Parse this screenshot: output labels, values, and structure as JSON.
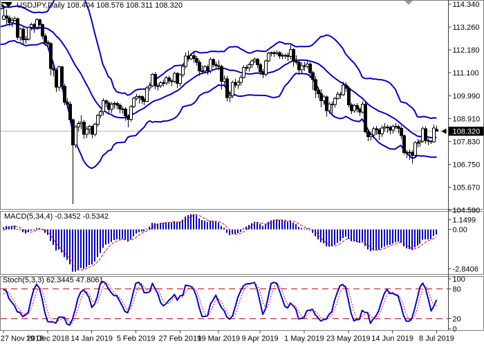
{
  "header": {
    "title": "USDJPY,Daily 108.404 108.576 108.311 108.320"
  },
  "macd_panel": {
    "label": "MACD(5,34,4) -0.3452 -0.5342",
    "name": "MACD",
    "params": "5,34,4",
    "value_main": "-0.3452",
    "value_signal": "-0.5342",
    "axis_labels": [
      "1.1499",
      "0.00",
      "-2.8406"
    ]
  },
  "stoch_panel": {
    "label": "Stoch(5,3,3) 62.3445 47.8061",
    "name": "Stochastic",
    "params": "5,3,3",
    "value_main": "62.3445",
    "value_signal": "47.8061",
    "axis_labels": [
      "100",
      "80",
      "20",
      "0"
    ],
    "levels": [
      80,
      20
    ]
  },
  "price_axis": {
    "tick_labels": [
      "114.340",
      "113.260",
      "112.180",
      "111.100",
      "109.990",
      "108.910",
      "107.830",
      "106.750",
      "105.670",
      "104.590"
    ],
    "current_price": "108.320"
  },
  "time_axis": {
    "ticks": [
      {
        "label": "27 Nov 2018",
        "index": 0
      },
      {
        "label": "19 Dec 2018",
        "index": 16
      },
      {
        "label": "14 Jan 2019",
        "index": 32
      },
      {
        "label": "5 Feb 2019",
        "index": 48
      },
      {
        "label": "27 Feb 2019",
        "index": 64
      },
      {
        "label": "19 Mar 2019",
        "index": 78
      },
      {
        "label": "9 Apr 2019",
        "index": 93
      },
      {
        "label": "1 May 2019",
        "index": 109
      },
      {
        "label": "23 May 2019",
        "index": 125
      },
      {
        "label": "14 Jun 2019",
        "index": 141
      },
      {
        "label": "8 Jul 2019",
        "index": 157
      }
    ]
  },
  "colors": {
    "background": "#ffffff",
    "text": "#000000",
    "panel_border": "#7d7d7d",
    "axis_line": "#3c3c3c",
    "bull_body": "#ffffff",
    "bear_body": "#000000",
    "candle_outline": "#000000",
    "bollinger": "#0000c8",
    "macd_hist": "#0000c8",
    "macd_signal": "#e00000",
    "stoch_main": "#0000c8",
    "stoch_signal": "#e00000",
    "stoch_level": "#c00000",
    "price_line": "#b4b4b4",
    "price_tag_bg": "#000000",
    "price_tag_fg": "#ffffff",
    "shift_marker": "#9a9a9a"
  },
  "chart_data": {
    "type": "candlestick",
    "symbol": "USDJPY",
    "timeframe": "Daily",
    "title": "USDJPY,Daily",
    "current_bar": {
      "open": 108.404,
      "high": 108.576,
      "low": 108.311,
      "close": 108.32
    },
    "indicators": [
      {
        "name": "Bollinger Bands",
        "period": 20,
        "deviation": 2
      },
      {
        "name": "MACD",
        "fast_ema": 5,
        "slow_ema": 34,
        "signal_sma": 4
      },
      {
        "name": "Stochastic",
        "k_period": 5,
        "d_period": 3,
        "slowing": 3
      }
    ],
    "price_axis_range": [
      104.59,
      114.34
    ],
    "macd_axis_range": [
      -2.8406,
      1.1499
    ],
    "stoch_axis_range": [
      0,
      100
    ],
    "visible_from": 20,
    "candles_note": "[open,high,low,close]; first 20 bars are pre-window warm-up for indicators",
    "candles": [
      [
        113.0,
        113.3,
        112.9,
        113.14
      ],
      [
        113.14,
        113.4,
        112.8,
        112.94
      ],
      [
        112.94,
        113.1,
        112.55,
        112.72
      ],
      [
        112.72,
        113.25,
        112.6,
        113.2
      ],
      [
        113.2,
        113.35,
        113.05,
        113.21
      ],
      [
        113.21,
        113.5,
        113.06,
        113.4
      ],
      [
        113.4,
        113.6,
        113.2,
        113.53
      ],
      [
        113.53,
        114.08,
        113.42,
        113.99
      ],
      [
        113.99,
        114.06,
        113.65,
        113.84
      ],
      [
        113.84,
        114.0,
        113.7,
        113.85
      ],
      [
        113.85,
        113.95,
        113.6,
        113.82
      ],
      [
        113.82,
        113.9,
        113.45,
        113.65
      ],
      [
        113.65,
        113.75,
        113.3,
        113.54
      ],
      [
        113.54,
        113.62,
        112.65,
        112.83
      ],
      [
        112.83,
        112.9,
        112.3,
        112.54
      ],
      [
        112.54,
        112.85,
        112.4,
        112.76
      ],
      [
        112.76,
        113.2,
        112.6,
        113.11
      ],
      [
        113.11,
        113.25,
        112.8,
        112.95
      ],
      [
        112.95,
        113.15,
        112.85,
        112.96
      ],
      [
        112.96,
        113.65,
        112.9,
        113.57
      ],
      [
        113.62,
        114.21,
        113.59,
        113.78
      ],
      [
        113.78,
        114.1,
        113.4,
        113.68
      ],
      [
        113.68,
        113.8,
        113.3,
        113.47
      ],
      [
        113.47,
        113.71,
        113.26,
        113.57
      ],
      [
        113.57,
        113.75,
        113.5,
        113.66
      ],
      [
        113.66,
        113.7,
        112.65,
        112.77
      ],
      [
        112.77,
        113.23,
        112.6,
        113.17
      ],
      [
        113.17,
        113.25,
        112.44,
        112.66
      ],
      [
        112.66,
        112.84,
        112.48,
        112.69
      ],
      [
        112.69,
        113.3,
        112.62,
        113.24
      ],
      [
        113.24,
        113.45,
        113.1,
        113.38
      ],
      [
        113.38,
        113.45,
        112.99,
        113.25
      ],
      [
        113.25,
        113.68,
        113.14,
        113.6
      ],
      [
        113.6,
        113.66,
        113.2,
        113.38
      ],
      [
        113.38,
        113.43,
        112.68,
        112.83
      ],
      [
        112.83,
        112.95,
        112.36,
        112.52
      ],
      [
        112.52,
        112.63,
        112.25,
        112.48
      ],
      [
        112.48,
        112.56,
        110.96,
        111.29
      ],
      [
        111.29,
        111.48,
        110.91,
        111.22
      ],
      [
        111.22,
        111.32,
        110.17,
        110.4
      ],
      [
        110.4,
        111.42,
        110.22,
        111.37
      ],
      [
        111.37,
        111.41,
        110.31,
        110.46
      ],
      [
        110.46,
        110.57,
        109.55,
        109.69
      ],
      [
        109.69,
        109.88,
        109.43,
        109.61
      ],
      [
        109.61,
        109.73,
        108.71,
        108.87
      ],
      [
        108.87,
        108.91,
        104.87,
        107.67
      ],
      [
        107.67,
        108.6,
        107.52,
        108.52
      ],
      [
        108.52,
        108.8,
        108.32,
        108.68
      ],
      [
        108.68,
        109.08,
        108.4,
        108.75
      ],
      [
        108.75,
        108.85,
        107.97,
        108.17
      ],
      [
        108.17,
        108.55,
        107.99,
        108.42
      ],
      [
        108.42,
        108.62,
        108.18,
        108.55
      ],
      [
        108.55,
        108.6,
        107.99,
        108.17
      ],
      [
        108.17,
        108.72,
        108.08,
        108.65
      ],
      [
        108.65,
        109.12,
        108.52,
        109.08
      ],
      [
        109.08,
        109.33,
        108.93,
        109.25
      ],
      [
        109.25,
        109.89,
        109.07,
        109.77
      ],
      [
        109.77,
        109.82,
        109.45,
        109.66
      ],
      [
        109.66,
        109.75,
        109.13,
        109.36
      ],
      [
        109.36,
        109.7,
        109.19,
        109.6
      ],
      [
        109.6,
        109.74,
        109.39,
        109.63
      ],
      [
        109.63,
        109.72,
        109.36,
        109.55
      ],
      [
        109.55,
        109.64,
        109.18,
        109.38
      ],
      [
        109.38,
        109.51,
        109.16,
        109.38
      ],
      [
        109.38,
        109.46,
        108.81,
        109.05
      ],
      [
        109.05,
        109.13,
        108.5,
        108.89
      ],
      [
        108.89,
        109.56,
        108.76,
        109.49
      ],
      [
        109.49,
        109.95,
        109.42,
        109.89
      ],
      [
        109.89,
        110.1,
        109.76,
        109.96
      ],
      [
        109.96,
        110.04,
        109.64,
        109.97
      ],
      [
        109.97,
        110.02,
        109.6,
        109.82
      ],
      [
        109.82,
        109.91,
        109.56,
        109.73
      ],
      [
        109.73,
        110.45,
        109.7,
        110.38
      ],
      [
        110.38,
        110.64,
        110.23,
        110.48
      ],
      [
        110.48,
        111.08,
        110.41,
        111.02
      ],
      [
        111.02,
        111.13,
        110.31,
        110.47
      ],
      [
        110.47,
        110.58,
        110.26,
        110.48
      ],
      [
        110.48,
        110.68,
        110.37,
        110.62
      ],
      [
        110.62,
        110.77,
        110.44,
        110.61
      ],
      [
        110.61,
        110.93,
        110.51,
        110.85
      ],
      [
        110.85,
        110.95,
        110.55,
        110.7
      ],
      [
        110.7,
        110.78,
        110.45,
        110.69
      ],
      [
        110.69,
        111.15,
        110.6,
        111.06
      ],
      [
        111.06,
        111.11,
        110.35,
        110.58
      ],
      [
        110.58,
        111.07,
        110.44,
        111.0
      ],
      [
        111.0,
        111.49,
        110.88,
        111.39
      ],
      [
        111.39,
        112.07,
        111.29,
        111.89
      ],
      [
        111.89,
        112.14,
        111.62,
        111.75
      ],
      [
        111.75,
        111.99,
        111.68,
        111.9
      ],
      [
        111.9,
        112.13,
        111.57,
        111.77
      ],
      [
        111.77,
        111.88,
        111.42,
        111.59
      ],
      [
        111.59,
        111.7,
        110.95,
        111.17
      ],
      [
        111.17,
        111.44,
        111.05,
        111.18
      ],
      [
        111.18,
        111.45,
        111.06,
        111.37
      ],
      [
        111.37,
        111.48,
        110.99,
        111.17
      ],
      [
        111.17,
        111.81,
        111.07,
        111.72
      ],
      [
        111.72,
        111.79,
        111.36,
        111.48
      ],
      [
        111.48,
        111.61,
        111.27,
        111.42
      ],
      [
        111.42,
        111.69,
        111.21,
        111.39
      ],
      [
        111.39,
        111.48,
        110.3,
        110.69
      ],
      [
        110.69,
        110.97,
        110.52,
        110.8
      ],
      [
        110.8,
        110.95,
        109.74,
        109.92
      ],
      [
        109.92,
        110.23,
        109.7,
        110.0
      ],
      [
        110.0,
        110.72,
        109.88,
        110.64
      ],
      [
        110.64,
        110.8,
        110.37,
        110.51
      ],
      [
        110.51,
        110.74,
        110.33,
        110.63
      ],
      [
        110.63,
        110.99,
        110.49,
        110.86
      ],
      [
        110.86,
        111.46,
        110.81,
        111.35
      ],
      [
        111.35,
        111.48,
        111.17,
        111.32
      ],
      [
        111.32,
        111.58,
        111.14,
        111.48
      ],
      [
        111.48,
        111.72,
        111.32,
        111.66
      ],
      [
        111.66,
        111.82,
        111.55,
        111.73
      ],
      [
        111.73,
        111.78,
        111.31,
        111.47
      ],
      [
        111.47,
        111.56,
        110.98,
        111.15
      ],
      [
        111.15,
        111.27,
        110.84,
        111.01
      ],
      [
        111.01,
        111.72,
        110.92,
        111.65
      ],
      [
        111.65,
        112.1,
        111.58,
        112.02
      ],
      [
        112.02,
        112.09,
        111.86,
        112.04
      ],
      [
        112.04,
        112.13,
        111.83,
        112.0
      ],
      [
        112.0,
        112.17,
        111.91,
        112.04
      ],
      [
        112.04,
        112.11,
        111.76,
        111.88
      ],
      [
        111.88,
        112.02,
        111.74,
        111.92
      ],
      [
        111.92,
        112.0,
        111.76,
        111.92
      ],
      [
        111.92,
        112.05,
        111.66,
        111.87
      ],
      [
        111.87,
        112.4,
        111.73,
        112.19
      ],
      [
        112.19,
        112.26,
        111.37,
        111.63
      ],
      [
        111.63,
        111.92,
        111.47,
        111.58
      ],
      [
        111.58,
        111.7,
        111.04,
        111.22
      ],
      [
        111.22,
        111.59,
        111.05,
        111.42
      ],
      [
        111.42,
        111.6,
        111.18,
        111.39
      ],
      [
        111.39,
        111.69,
        111.29,
        111.5
      ],
      [
        111.5,
        111.58,
        110.84,
        111.1
      ],
      [
        111.1,
        111.19,
        110.28,
        110.76
      ],
      [
        110.76,
        110.93,
        109.9,
        110.26
      ],
      [
        110.26,
        110.4,
        109.88,
        110.1
      ],
      [
        110.1,
        110.31,
        109.46,
        109.76
      ],
      [
        109.76,
        110.05,
        109.57,
        109.95
      ],
      [
        109.95,
        110.01,
        109.01,
        109.3
      ],
      [
        109.3,
        109.7,
        109.14,
        109.6
      ],
      [
        109.6,
        109.74,
        109.15,
        109.59
      ],
      [
        109.59,
        109.94,
        109.44,
        109.87
      ],
      [
        109.87,
        110.19,
        109.81,
        110.08
      ],
      [
        110.08,
        110.2,
        109.85,
        110.05
      ],
      [
        110.05,
        110.67,
        109.99,
        110.51
      ],
      [
        110.51,
        110.63,
        110.19,
        110.35
      ],
      [
        110.35,
        110.45,
        109.46,
        109.57
      ],
      [
        109.57,
        109.67,
        109.12,
        109.3
      ],
      [
        109.3,
        109.62,
        109.19,
        109.53
      ],
      [
        109.53,
        109.66,
        109.21,
        109.37
      ],
      [
        109.37,
        109.45,
        109.05,
        109.22
      ],
      [
        109.22,
        109.74,
        109.15,
        109.61
      ],
      [
        109.61,
        109.7,
        108.22,
        108.29
      ],
      [
        108.29,
        108.4,
        107.85,
        108.07
      ],
      [
        108.07,
        108.28,
        107.88,
        108.15
      ],
      [
        108.15,
        108.53,
        107.99,
        108.44
      ],
      [
        108.44,
        108.57,
        108.14,
        108.39
      ],
      [
        108.39,
        108.47,
        107.89,
        108.19
      ],
      [
        108.19,
        108.58,
        108.05,
        108.47
      ],
      [
        108.47,
        108.7,
        108.29,
        108.52
      ],
      [
        108.52,
        108.62,
        108.24,
        108.5
      ],
      [
        108.5,
        108.59,
        108.16,
        108.37
      ],
      [
        108.37,
        108.64,
        108.21,
        108.56
      ],
      [
        108.56,
        108.72,
        108.42,
        108.54
      ],
      [
        108.54,
        108.63,
        108.23,
        108.45
      ],
      [
        108.45,
        108.56,
        107.93,
        108.11
      ],
      [
        108.11,
        108.16,
        107.21,
        107.3
      ],
      [
        107.3,
        107.44,
        107.04,
        107.32
      ],
      [
        107.32,
        107.45,
        106.96,
        107.32
      ],
      [
        107.32,
        107.42,
        106.78,
        107.18
      ],
      [
        107.18,
        107.85,
        107.11,
        107.79
      ],
      [
        107.79,
        107.94,
        107.56,
        107.79
      ],
      [
        107.79,
        107.92,
        107.58,
        107.85
      ],
      [
        107.85,
        108.53,
        107.77,
        108.44
      ],
      [
        108.44,
        108.55,
        107.74,
        107.88
      ],
      [
        107.88,
        107.98,
        107.66,
        107.85
      ],
      [
        107.85,
        107.9,
        107.71,
        107.81
      ],
      [
        107.81,
        108.64,
        107.76,
        108.47
      ],
      [
        108.4,
        108.58,
        108.31,
        108.32
      ]
    ]
  }
}
